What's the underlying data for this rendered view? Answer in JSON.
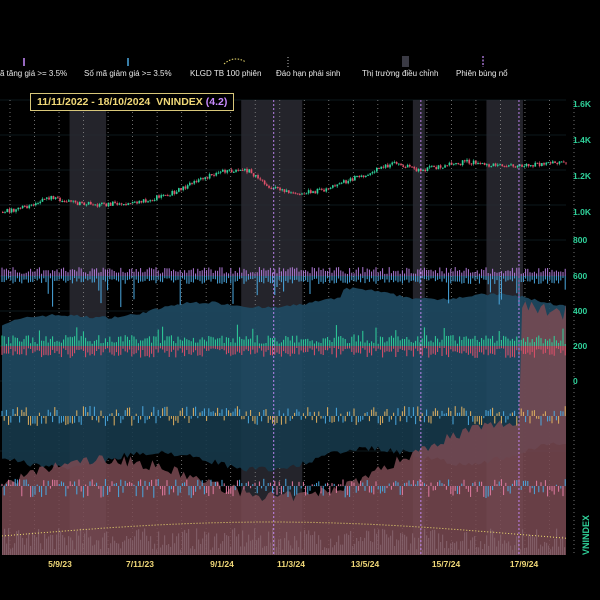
{
  "legend": {
    "items": [
      {
        "label": "ã tăng giá >= 3.5%",
        "color": "#c98bff",
        "glyph": "bar"
      },
      {
        "label": "Số mã giảm giá >= 3.5%",
        "color": "#4aa8e0",
        "glyph": "bar"
      },
      {
        "label": "KLGD TB 100 phiên",
        "color": "#f0e070",
        "glyph": "dotted-curve"
      },
      {
        "label": "Đáo hạn phái sinh",
        "color": "#bbbbbb",
        "glyph": "dotted-vline"
      },
      {
        "label": "Thị trường điều chỉnh",
        "color": "#3a3a44",
        "glyph": "shade"
      },
      {
        "label": "Phiên bùng nổ",
        "color": "#c98bff",
        "glyph": "dashed-vline"
      }
    ]
  },
  "title": {
    "range": "11/11/2022 - 18/10/2024",
    "symbol": "VNINDEX",
    "value": "(4.2)"
  },
  "side_label": "VNINDEX",
  "colors": {
    "background": "#000000",
    "up": "#2fd19a",
    "down": "#e0506a",
    "axis_text": "#2fd19a",
    "date_text": "#f0d878",
    "advancers_area": "#1f4a63",
    "decliners_area": "#7a4a52",
    "volume_bar": "#8a6a72",
    "ma_line": "#f0e070",
    "correction_shade": "#2a2a33",
    "breakout_line": "#c98bff"
  },
  "chart_data": {
    "type": "line",
    "x_ticks": [
      "5/9/23",
      "7/11/23",
      "9/1/24",
      "11/3/24",
      "13/5/24",
      "15/7/24",
      "17/9/24"
    ],
    "price_axis": {
      "ticks": [
        "1.6K",
        "1.4K",
        "1.2K",
        "1.0K"
      ],
      "ylim": [
        0.9,
        1.65
      ]
    },
    "count_axis": {
      "ticks": [
        "800",
        "600",
        "400",
        "200",
        "0"
      ],
      "ylim": [
        -100,
        860
      ]
    },
    "series": [
      {
        "name": "VNINDEX",
        "x": [
          "11/2022",
          "12/2022",
          "1/2023",
          "2/2023",
          "3/2023",
          "4/2023",
          "5/2023",
          "6/2023",
          "7/2023",
          "8/2023",
          "9/2023",
          "10/2023",
          "11/2023",
          "12/2023",
          "1/2024",
          "2/2024",
          "3/2024",
          "4/2024",
          "5/2024",
          "6/2024",
          "7/2024",
          "8/2024",
          "9/2024",
          "10/2024"
        ],
        "values": [
          1.0,
          1.03,
          1.08,
          1.05,
          1.04,
          1.05,
          1.07,
          1.11,
          1.18,
          1.23,
          1.23,
          1.13,
          1.1,
          1.12,
          1.17,
          1.22,
          1.27,
          1.23,
          1.26,
          1.28,
          1.26,
          1.25,
          1.27,
          1.28
        ]
      }
    ],
    "correction_periods": [
      [
        "2/2023",
        "3/2023"
      ],
      [
        "9/2023",
        "11/2023"
      ],
      [
        "4/2024",
        "4/2024"
      ],
      [
        "7/2024",
        "8/2024"
      ]
    ],
    "breakout_sessions": [
      "10/2023",
      "4/2024",
      "8/2024"
    ]
  }
}
